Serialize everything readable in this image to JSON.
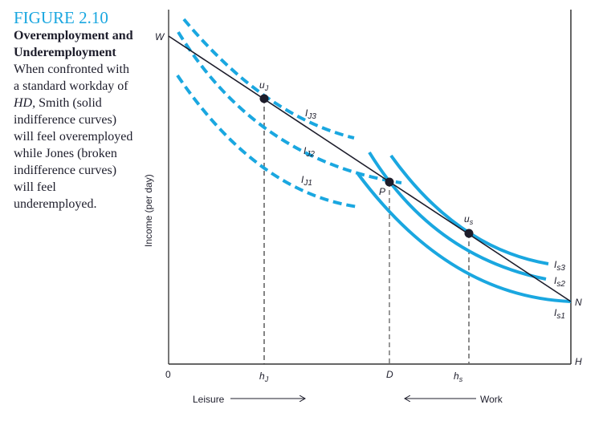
{
  "caption": {
    "figure_number": "FIGURE 2.10",
    "title": "Overemployment and Underemployment",
    "body_pre": "When confronted with a standard workday of ",
    "body_em": "HD,",
    "body_post": " Smith (solid indifference curves) will feel overemployed while Jones (broken indifference curves) will feel underemployed."
  },
  "diagram": {
    "y_axis_label": "Income (per day)",
    "origin_label": "0",
    "points": {
      "W": "W",
      "N": "N",
      "H": "H",
      "P": "P",
      "uJ_main": "u",
      "uJ_sub": "J",
      "us_main": "u",
      "us_sub": "s"
    },
    "x_ticks": {
      "hJ_main": "h",
      "hJ_sub": "J",
      "D": "D",
      "hs_main": "h",
      "hs_sub": "s"
    },
    "curves": {
      "IJ3": {
        "main": "I",
        "sub": "J3"
      },
      "IJ2": {
        "main": "I",
        "sub": "J2"
      },
      "IJ1": {
        "main": "I",
        "sub": "J1"
      },
      "Is3": {
        "main": "I",
        "sub": "s3"
      },
      "Is2": {
        "main": "I",
        "sub": "s2"
      },
      "Is1": {
        "main": "I",
        "sub": "s1"
      }
    },
    "leisure_label": "Leisure",
    "work_label": "Work",
    "colors": {
      "curve": "#1aa7e0",
      "line": "#1d1d2b",
      "accent": "#1aa7e0"
    },
    "jones_curves_style": "dashed",
    "smith_curves_style": "solid"
  }
}
